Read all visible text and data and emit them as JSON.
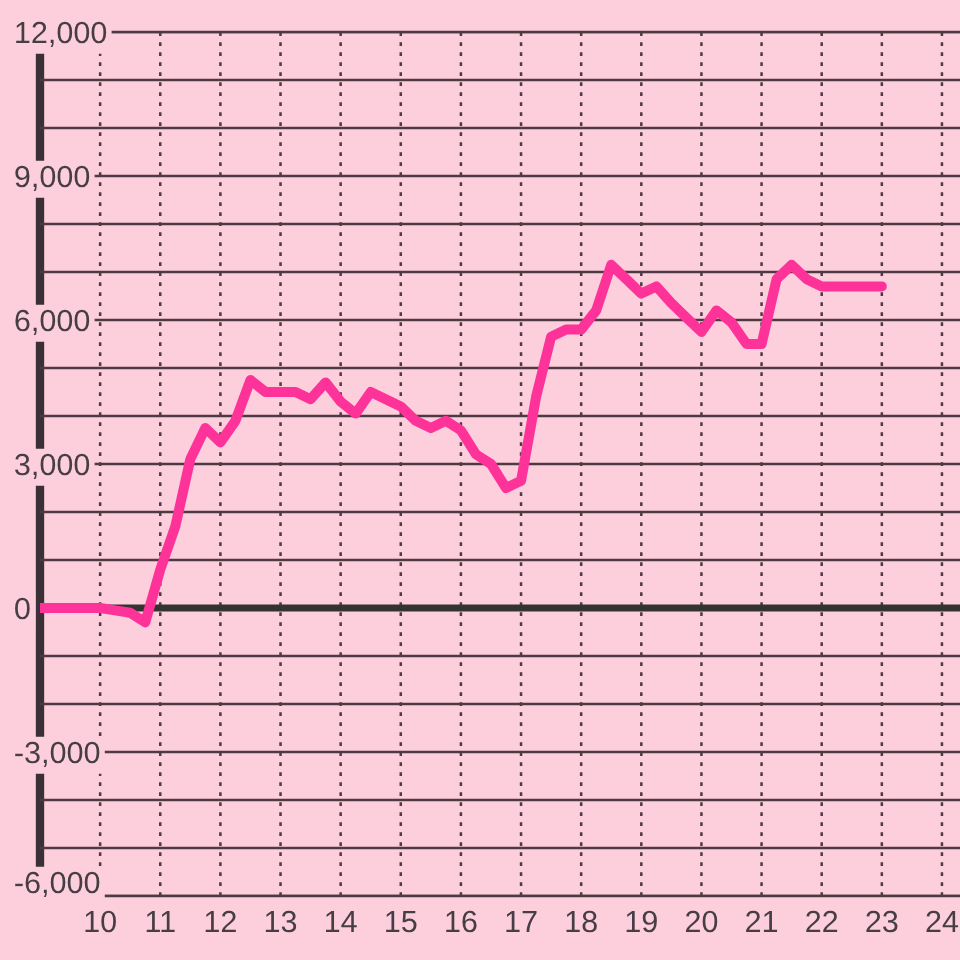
{
  "chart_data": {
    "type": "line",
    "x": [
      9,
      10,
      10.25,
      10.5,
      10.75,
      11,
      11.25,
      11.5,
      11.75,
      12,
      12.25,
      12.5,
      12.75,
      13,
      13.25,
      13.5,
      13.75,
      14,
      14.25,
      14.5,
      14.75,
      15,
      15.25,
      15.5,
      15.75,
      16,
      16.25,
      16.5,
      16.75,
      17,
      17.25,
      17.5,
      17.75,
      18,
      18.25,
      18.5,
      18.75,
      19,
      19.25,
      19.5,
      19.75,
      20,
      20.25,
      20.5,
      20.75,
      21,
      21.25,
      21.5,
      21.75,
      22,
      23
    ],
    "series": [
      {
        "color": "#fe3399",
        "values": [
          0,
          0,
          -50,
          -100,
          -300,
          800,
          1700,
          3100,
          3750,
          3450,
          3900,
          4750,
          4500,
          4500,
          4500,
          4350,
          4700,
          4300,
          4050,
          4500,
          4350,
          4200,
          3900,
          3750,
          3900,
          3700,
          3200,
          3000,
          2500,
          2650,
          4400,
          5650,
          5800,
          5800,
          6200,
          7150,
          6850,
          6550,
          6700,
          6350,
          6050,
          5750,
          6200,
          5950,
          5500,
          5500,
          6850,
          7150,
          6850,
          6700,
          6700
        ]
      }
    ],
    "xlim": [
      9,
      24.3
    ],
    "xticks": [
      10,
      11,
      12,
      13,
      14,
      15,
      16,
      17,
      18,
      19,
      20,
      21,
      22,
      23,
      24
    ],
    "ylim": [
      -6000,
      12000
    ],
    "yticks": [
      {
        "value": -6000,
        "label": "-6,000"
      },
      {
        "value": -5000,
        "label": null
      },
      {
        "value": -4000,
        "label": null
      },
      {
        "value": -3000,
        "label": "-3,000"
      },
      {
        "value": -2000,
        "label": null
      },
      {
        "value": -1000,
        "label": null
      },
      {
        "value": 0,
        "label": "0"
      },
      {
        "value": 1000,
        "label": null
      },
      {
        "value": 2000,
        "label": null
      },
      {
        "value": 3000,
        "label": "3,000"
      },
      {
        "value": 4000,
        "label": null
      },
      {
        "value": 5000,
        "label": null
      },
      {
        "value": 6000,
        "label": "6,000"
      },
      {
        "value": 7000,
        "label": null
      },
      {
        "value": 8000,
        "label": null
      },
      {
        "value": 9000,
        "label": "9,000"
      },
      {
        "value": 10000,
        "label": null
      },
      {
        "value": 11000,
        "label": null
      },
      {
        "value": 12000,
        "label": "12,000"
      }
    ],
    "grid": true,
    "ref_lines": [
      {
        "axis": "y",
        "value": 0,
        "color": "#333333"
      }
    ],
    "marker": "none",
    "line_style": "solid"
  }
}
